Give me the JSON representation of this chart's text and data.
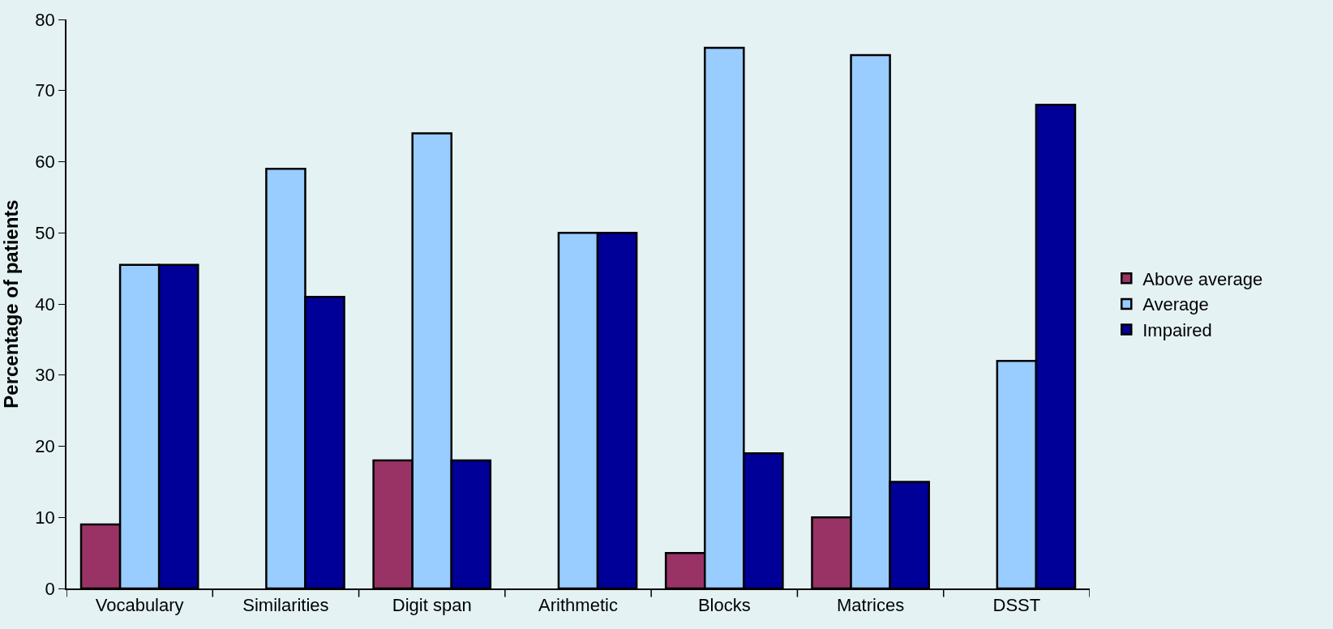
{
  "chart_data": {
    "type": "bar",
    "ylabel": "Percentage of patients",
    "categories": [
      "Vocabulary",
      "Similarities",
      "Digit span",
      "Arithmetic",
      "Blocks",
      "Matrices",
      "DSST"
    ],
    "series": [
      {
        "name": "Above average",
        "color": "#993366",
        "values": [
          9,
          null,
          18,
          null,
          5,
          10,
          null
        ]
      },
      {
        "name": "Average",
        "color": "#99ccff",
        "values": [
          45.5,
          59,
          64,
          50,
          76,
          75,
          32
        ]
      },
      {
        "name": "Impaired",
        "color": "#000099",
        "values": [
          45.5,
          41,
          18,
          50,
          19,
          15,
          68
        ]
      }
    ],
    "ylim": [
      0,
      80
    ],
    "yticks": [
      0,
      10,
      20,
      30,
      40,
      50,
      60,
      70,
      80
    ],
    "grid": false,
    "legend": "right"
  }
}
